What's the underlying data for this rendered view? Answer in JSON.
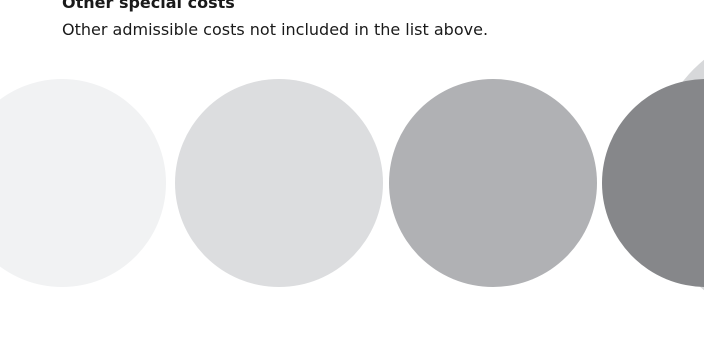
{
  "section": {
    "heading": "Other special costs",
    "description": "Other admissible costs not included in the list above."
  },
  "decoration": {
    "circle_colors": [
      "#f1f2f3",
      "#dcdddf",
      "#b0b1b4",
      "#86878a"
    ],
    "background_circle_color": "#d7d8da"
  }
}
